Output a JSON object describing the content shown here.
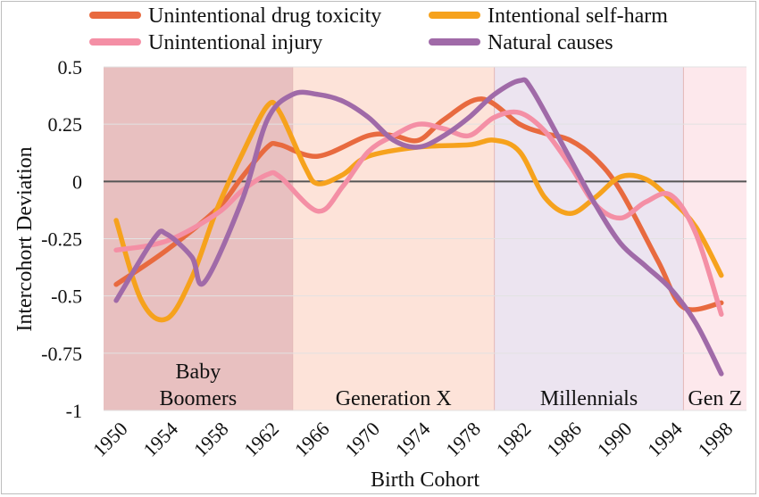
{
  "chart_data": {
    "type": "line",
    "xlabel": "Birth Cohort",
    "ylabel": "Intercohort Deviation",
    "xlim": [
      1949,
      2000
    ],
    "ylim": [
      -1,
      0.5
    ],
    "x_ticks": [
      1950,
      1954,
      1958,
      1962,
      1966,
      1970,
      1974,
      1978,
      1982,
      1986,
      1990,
      1994,
      1998
    ],
    "y_ticks": [
      0.5,
      0.25,
      0,
      -0.25,
      -0.5,
      -0.75,
      -1
    ],
    "y_tick_labels": [
      "0.5",
      "0.25",
      "0",
      "-0.25",
      "-0.5",
      "-0.75",
      "-1"
    ],
    "grid": "horizontal",
    "legend_position": "top",
    "generations": [
      {
        "label": "Baby Boomers",
        "lines": [
          "Baby",
          "Boomers"
        ],
        "start": 1949,
        "end": 1964,
        "color": "#e8c0c0"
      },
      {
        "label": "Generation X",
        "lines": [
          "Generation X"
        ],
        "start": 1964,
        "end": 1980,
        "color": "#fde3d9"
      },
      {
        "label": "Millennials",
        "lines": [
          "Millennials"
        ],
        "start": 1980,
        "end": 1995,
        "color": "#ece4f0"
      },
      {
        "label": "Gen Z",
        "lines": [
          "Gen Z"
        ],
        "start": 1995,
        "end": 2000,
        "color": "#fde8ec"
      }
    ],
    "series": [
      {
        "name": "Unintentional drug toxicity",
        "color": "#e86a3f",
        "x": [
          1950,
          1954,
          1958,
          1960,
          1962,
          1963,
          1966,
          1970,
          1972,
          1974,
          1976,
          1979,
          1982,
          1984,
          1986,
          1988,
          1990,
          1993,
          1995,
          1998
        ],
        "y": [
          -0.45,
          -0.3,
          -0.12,
          0.02,
          0.15,
          0.16,
          0.11,
          0.2,
          0.2,
          0.18,
          0.27,
          0.36,
          0.25,
          0.21,
          0.18,
          0.1,
          -0.04,
          -0.35,
          -0.55,
          -0.53
        ]
      },
      {
        "name": "Intentional self-harm",
        "color": "#f6a21d",
        "x": [
          1950,
          1952,
          1954,
          1956,
          1958,
          1960,
          1962,
          1963,
          1965,
          1966,
          1968,
          1970,
          1974,
          1978,
          1980,
          1982,
          1984,
          1986,
          1988,
          1990,
          1992,
          1994,
          1996,
          1998
        ],
        "y": [
          -0.17,
          -0.52,
          -0.6,
          -0.42,
          -0.12,
          0.12,
          0.33,
          0.3,
          0.06,
          -0.01,
          0.03,
          0.11,
          0.15,
          0.16,
          0.18,
          0.13,
          -0.07,
          -0.14,
          -0.07,
          0.02,
          0.01,
          -0.08,
          -0.2,
          -0.41
        ]
      },
      {
        "name": "Unintentional injury",
        "color": "#f48fa5",
        "x": [
          1950,
          1954,
          1958,
          1960,
          1962,
          1963,
          1966,
          1968,
          1970,
          1972,
          1974,
          1976,
          1978,
          1980,
          1982,
          1984,
          1986,
          1988,
          1990,
          1992,
          1994,
          1996,
          1998
        ],
        "y": [
          -0.3,
          -0.26,
          -0.14,
          -0.04,
          0.03,
          0.02,
          -0.13,
          -0.02,
          0.13,
          0.2,
          0.25,
          0.23,
          0.2,
          0.28,
          0.3,
          0.22,
          0.07,
          -0.1,
          -0.16,
          -0.09,
          -0.06,
          -0.23,
          -0.58
        ]
      },
      {
        "name": "Natural causes",
        "color": "#a06aa8",
        "x": [
          1950,
          1953,
          1954,
          1956,
          1957,
          1960,
          1962,
          1964,
          1966,
          1968,
          1970,
          1972,
          1974,
          1976,
          1978,
          1980,
          1982,
          1983,
          1986,
          1988,
          1990,
          1992,
          1994,
          1996,
          1998
        ],
        "y": [
          -0.52,
          -0.25,
          -0.23,
          -0.33,
          -0.44,
          -0.08,
          0.27,
          0.38,
          0.38,
          0.35,
          0.28,
          0.18,
          0.15,
          0.2,
          0.28,
          0.38,
          0.44,
          0.4,
          0.1,
          -0.1,
          -0.27,
          -0.37,
          -0.47,
          -0.62,
          -0.84
        ]
      }
    ]
  }
}
